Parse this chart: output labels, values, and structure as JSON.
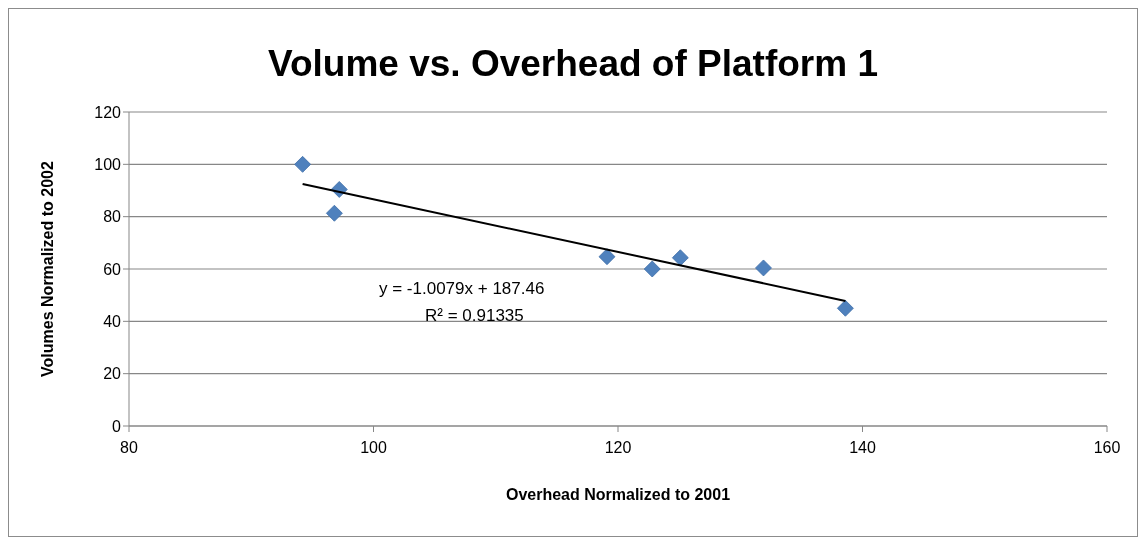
{
  "chart_data": {
    "type": "scatter",
    "title": "Volume vs. Overhead of Platform 1",
    "xlabel": "Overhead Normalized to 2001",
    "ylabel": "Volumes Normalized to 2002",
    "series": [
      {
        "color": "#4f81bd",
        "marker": "diamond",
        "x": [
          94.2,
          97.2,
          96.8,
          119.1,
          122.8,
          125.1,
          131.9,
          138.6
        ],
        "values": [
          100,
          90.4,
          81.3,
          64.7,
          60,
          64.3,
          60.4,
          45
        ]
      },
      {
        "type": "line",
        "color": "#000000",
        "marker": "none",
        "x": [
          94.2,
          138.6
        ],
        "values": [
          92.5,
          47.8
        ]
      }
    ],
    "annotations": [
      "y = -1.0079x + 187.46",
      "R² = 0.91335"
    ],
    "xlim": [
      80,
      160
    ],
    "xticks": [
      80,
      100,
      120,
      140,
      160
    ],
    "ylim": [
      0,
      120
    ],
    "yticks": [
      0,
      20,
      40,
      60,
      80,
      100,
      120
    ],
    "grid": "y"
  }
}
